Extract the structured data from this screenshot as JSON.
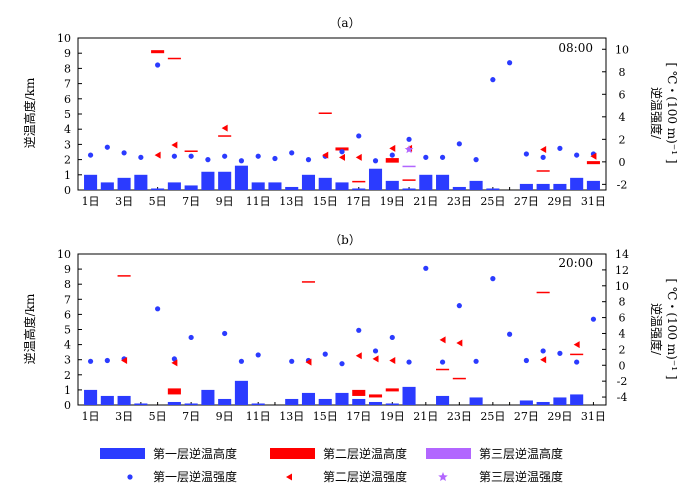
{
  "legend": {
    "l1_bar": "第一层逆温高度",
    "l2_bar": "第二层逆温高度",
    "l3_bar": "第三层逆温高度",
    "l1_pt": "第一层逆温强度",
    "l2_pt": "第二层逆温强度",
    "l3_pt": "第三层逆温强度"
  },
  "colors": {
    "layer1": "#2b3bff",
    "layer2": "#ff0000",
    "layer3": "#b266ff"
  },
  "chart_data": [
    {
      "type": "bar",
      "panel_label": "（a）",
      "time_label": "08:00",
      "ylabel_left": "逆温高度/km",
      "ylabel_right": "逆温强度/",
      "ylabel_right_unit": "[ ℃・(100 m)⁻¹ ]",
      "ylim_left": [
        0,
        10
      ],
      "yticks_left": [
        0,
        1,
        2,
        3,
        4,
        5,
        6,
        7,
        8,
        9,
        10
      ],
      "ylim_right": [
        -2.5,
        11
      ],
      "yticks_right": [
        -2,
        0,
        2,
        4,
        6,
        8,
        10
      ],
      "categories": [
        "1日",
        "2日",
        "3日",
        "4日",
        "5日",
        "6日",
        "7日",
        "8日",
        "9日",
        "10日",
        "11日",
        "12日",
        "13日",
        "14日",
        "15日",
        "16日",
        "17日",
        "18日",
        "19日",
        "20日",
        "21日",
        "22日",
        "23日",
        "24日",
        "25日",
        "26日",
        "27日",
        "28日",
        "29日",
        "30日",
        "31日"
      ],
      "xtick_labels": [
        "1日",
        "3日",
        "5日",
        "7日",
        "9日",
        "11日",
        "13日",
        "15日",
        "17日",
        "19日",
        "21日",
        "23日",
        "25日",
        "27日",
        "29日",
        "31日"
      ],
      "series": [
        {
          "name": "第一层逆温高度",
          "kind": "bar",
          "values": [
            1.0,
            0.5,
            0.8,
            1.0,
            0.1,
            0.5,
            0.3,
            1.2,
            1.2,
            1.6,
            0.5,
            0.5,
            0.2,
            1.0,
            0.8,
            0.5,
            0.1,
            1.4,
            0.6,
            0.1,
            1.0,
            1.0,
            0.2,
            0.6,
            0.1,
            0.0,
            0.4,
            0.4,
            0.4,
            0.8,
            0.6
          ]
        },
        {
          "name": "第二层逆温高度",
          "kind": "bar",
          "values": [
            null,
            null,
            null,
            null,
            [
              9.0,
              9.2
            ],
            [
              8.6,
              8.7
            ],
            [
              2.6,
              2.6
            ],
            null,
            [
              3.6,
              3.6
            ],
            null,
            null,
            null,
            null,
            null,
            [
              5.0,
              5.1
            ],
            [
              2.6,
              2.8
            ],
            [
              0.5,
              0.6
            ],
            null,
            [
              1.8,
              2.1
            ],
            [
              0.6,
              0.7
            ],
            null,
            null,
            null,
            null,
            null,
            null,
            null,
            [
              1.3,
              1.3
            ],
            null,
            null,
            [
              1.7,
              1.9
            ]
          ]
        },
        {
          "name": "第三层逆温高度",
          "kind": "bar",
          "values": [
            null,
            null,
            null,
            null,
            null,
            null,
            null,
            null,
            null,
            null,
            null,
            null,
            null,
            null,
            null,
            null,
            null,
            null,
            null,
            [
              1.5,
              1.6
            ],
            null,
            null,
            null,
            null,
            null,
            null,
            null,
            null,
            null,
            null,
            null
          ]
        },
        {
          "name": "第一层逆温强度",
          "kind": "scatter",
          "values": [
            0.6,
            1.3,
            0.8,
            0.4,
            8.6,
            0.5,
            0.5,
            0.2,
            0.5,
            0.1,
            0.5,
            0.3,
            0.8,
            0.2,
            0.5,
            0.9,
            2.3,
            0.1,
            0.6,
            2.0,
            0.4,
            0.4,
            1.6,
            0.2,
            7.3,
            8.8,
            0.7,
            0.4,
            1.2,
            0.6,
            0.7
          ]
        },
        {
          "name": "第二层逆温强度",
          "kind": "scatter",
          "values": [
            null,
            null,
            null,
            null,
            0.6,
            1.5,
            null,
            null,
            3.0,
            null,
            null,
            null,
            null,
            null,
            0.6,
            0.4,
            0.4,
            null,
            1.2,
            1.2,
            null,
            null,
            null,
            null,
            null,
            null,
            null,
            1.1,
            null,
            null,
            0.5
          ]
        },
        {
          "name": "第三层逆温强度",
          "kind": "scatter",
          "values": [
            null,
            null,
            null,
            null,
            null,
            null,
            null,
            null,
            null,
            null,
            null,
            null,
            null,
            null,
            null,
            null,
            null,
            null,
            null,
            1.1,
            null,
            null,
            null,
            null,
            null,
            null,
            null,
            null,
            null,
            null,
            null
          ]
        }
      ]
    },
    {
      "type": "bar",
      "panel_label": "（b）",
      "time_label": "20:00",
      "ylabel_left": "逆温高度/km",
      "ylabel_right": "逆温强度/",
      "ylabel_right_unit": "[ ℃・(100 m)⁻¹ ]",
      "ylim_left": [
        0,
        10
      ],
      "yticks_left": [
        0,
        1,
        2,
        3,
        4,
        5,
        6,
        7,
        8,
        9,
        10
      ],
      "ylim_right": [
        -5,
        14
      ],
      "yticks_right": [
        -4,
        -2,
        0,
        2,
        4,
        6,
        8,
        10,
        12,
        14
      ],
      "categories": [
        "1日",
        "2日",
        "3日",
        "4日",
        "5日",
        "6日",
        "7日",
        "8日",
        "9日",
        "10日",
        "11日",
        "12日",
        "13日",
        "14日",
        "15日",
        "16日",
        "17日",
        "18日",
        "19日",
        "20日",
        "21日",
        "22日",
        "23日",
        "24日",
        "25日",
        "26日",
        "27日",
        "28日",
        "29日",
        "30日",
        "31日"
      ],
      "xtick_labels": [
        "1日",
        "3日",
        "5日",
        "7日",
        "9日",
        "11日",
        "13日",
        "15日",
        "17日",
        "19日",
        "21日",
        "23日",
        "25日",
        "27日",
        "29日",
        "31日"
      ],
      "series": [
        {
          "name": "第一层逆温高度",
          "kind": "bar",
          "values": [
            1.0,
            0.6,
            0.6,
            0.1,
            0.0,
            0.2,
            0.1,
            1.0,
            0.4,
            1.6,
            0.1,
            0.0,
            0.4,
            0.8,
            0.4,
            0.8,
            0.4,
            0.2,
            0.1,
            1.2,
            0.0,
            0.6,
            0.0,
            0.5,
            0.0,
            0.0,
            0.3,
            0.2,
            0.5,
            0.7,
            0.0
          ]
        },
        {
          "name": "第二层逆温高度",
          "kind": "bar",
          "values": [
            null,
            null,
            [
              8.6,
              8.6
            ],
            null,
            null,
            [
              0.7,
              1.1
            ],
            null,
            null,
            null,
            null,
            null,
            null,
            null,
            [
              8.1,
              8.2
            ],
            null,
            null,
            [
              0.6,
              1.0
            ],
            [
              0.5,
              0.7
            ],
            [
              0.9,
              1.1
            ],
            null,
            null,
            [
              2.4,
              2.4
            ],
            [
              1.8,
              1.8
            ],
            null,
            null,
            null,
            null,
            [
              7.5,
              7.5
            ],
            null,
            [
              3.4,
              3.4
            ],
            null
          ]
        },
        {
          "name": "第三层逆温高度",
          "kind": "bar",
          "values": [
            null,
            null,
            null,
            null,
            null,
            null,
            null,
            null,
            null,
            null,
            null,
            null,
            null,
            null,
            null,
            null,
            null,
            null,
            null,
            null,
            null,
            null,
            null,
            null,
            null,
            null,
            null,
            null,
            null,
            null,
            null
          ]
        },
        {
          "name": "第一层逆温强度",
          "kind": "scatter",
          "values": [
            0.5,
            0.6,
            0.8,
            null,
            7.1,
            0.8,
            3.5,
            null,
            4.0,
            0.5,
            1.3,
            null,
            0.5,
            0.6,
            1.4,
            0.2,
            4.4,
            1.8,
            3.5,
            0.4,
            12.2,
            0.4,
            7.5,
            0.5,
            10.9,
            3.9,
            0.6,
            1.8,
            1.5,
            0.4,
            5.8
          ]
        },
        {
          "name": "第二层逆温强度",
          "kind": "scatter",
          "values": [
            null,
            null,
            0.6,
            null,
            null,
            0.3,
            null,
            null,
            null,
            null,
            null,
            null,
            null,
            0.4,
            null,
            null,
            1.2,
            0.8,
            0.6,
            null,
            null,
            3.2,
            2.8,
            null,
            null,
            null,
            null,
            0.7,
            null,
            2.6,
            null
          ]
        },
        {
          "name": "第三层逆温强度",
          "kind": "scatter",
          "values": [
            null,
            null,
            null,
            null,
            null,
            null,
            null,
            null,
            null,
            null,
            null,
            null,
            null,
            null,
            null,
            null,
            null,
            null,
            null,
            null,
            null,
            null,
            null,
            null,
            null,
            null,
            null,
            null,
            null,
            null,
            null
          ]
        }
      ]
    }
  ]
}
